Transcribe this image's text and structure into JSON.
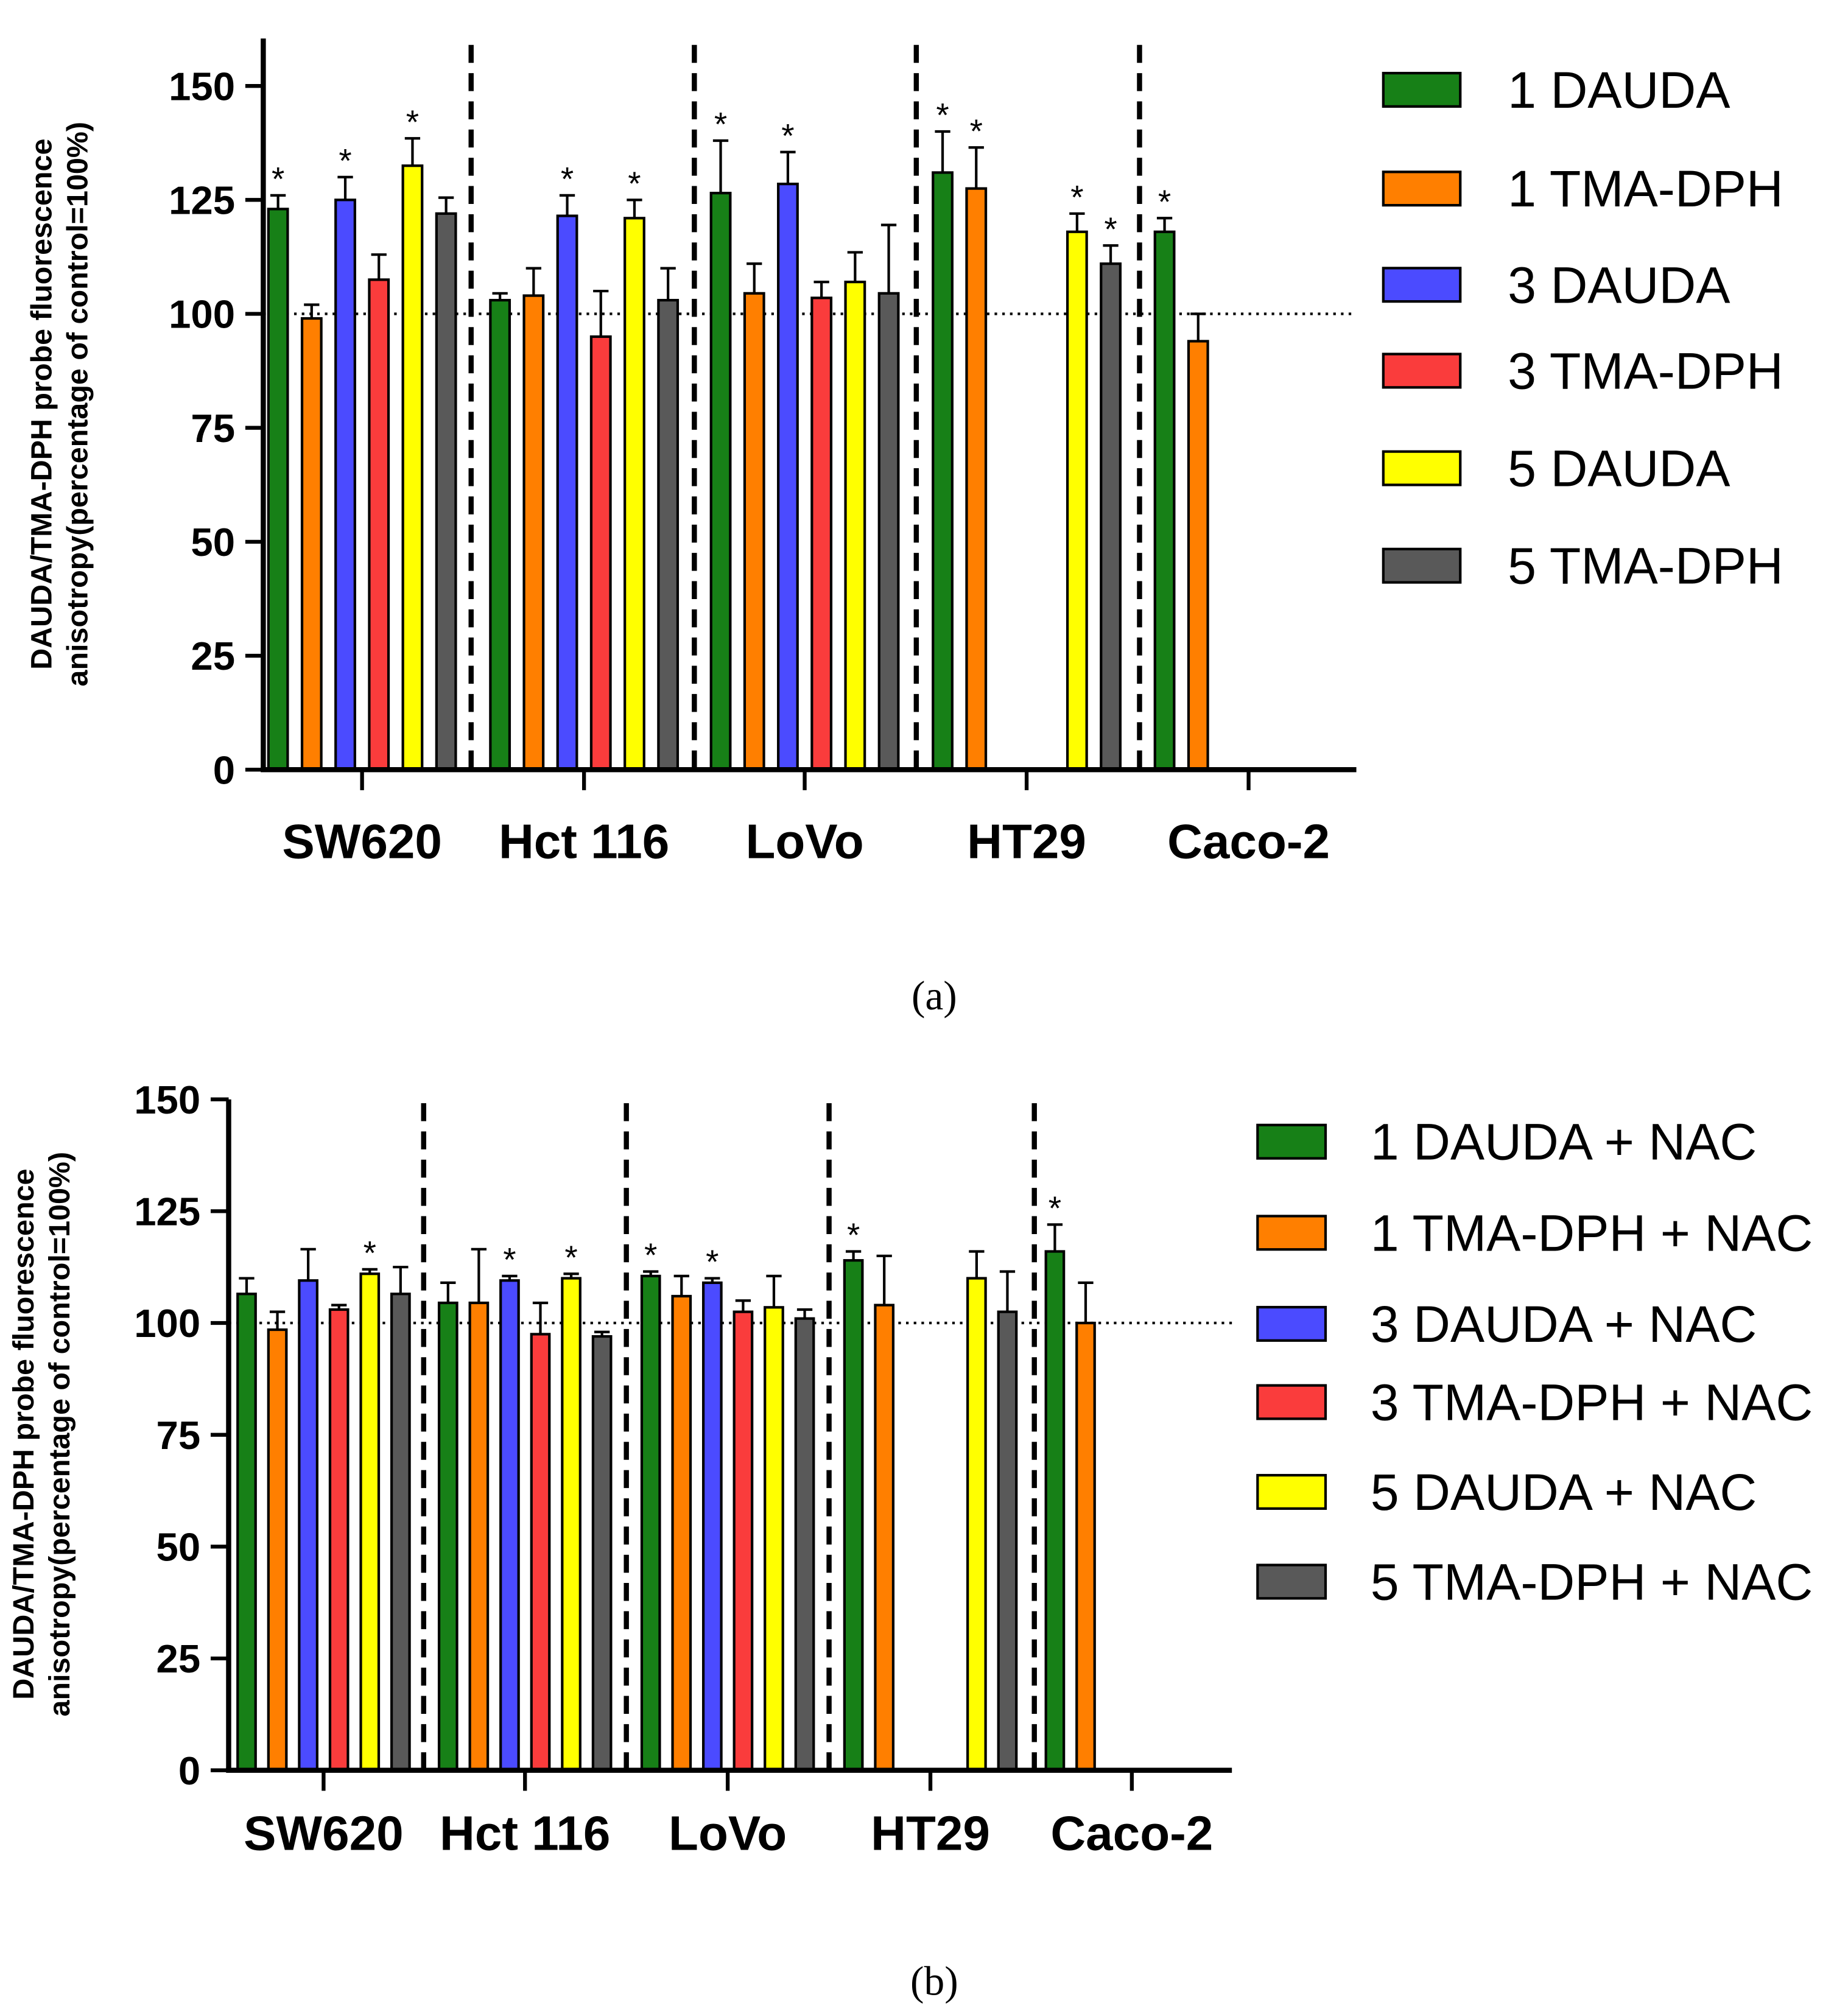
{
  "colors": {
    "1 DAUDA": "#178017",
    "1 TMA-DPH": "#ff7f00",
    "3 DAUDA": "#4b4bff",
    "3 TMA-DPH": "#fa3c3c",
    "5 DAUDA": "#ffff00",
    "5 TMA-DPH": "#595959"
  },
  "chart_data": [
    {
      "type": "bar",
      "caption": "(a)",
      "ylabel_lines": [
        "DAUDA/TMA-DPH probe fluorescence",
        "anisotropy(percentage of control=100%)"
      ],
      "ylim": [
        0,
        160
      ],
      "yticks": [
        0,
        25,
        50,
        75,
        100,
        125,
        150
      ],
      "reference_line": 100,
      "categories": [
        "SW620",
        "Hct 116",
        "LoVo",
        "HT29",
        "Caco-2"
      ],
      "legend_position": "right",
      "series": [
        {
          "name": "1 DAUDA",
          "values": [
            123,
            103,
            126.5,
            131,
            118
          ],
          "errors": [
            3,
            1.5,
            11.5,
            9,
            3
          ],
          "significant": [
            true,
            false,
            true,
            true,
            true
          ]
        },
        {
          "name": "1 TMA-DPH",
          "values": [
            99,
            104,
            104.5,
            127.5,
            94
          ],
          "errors": [
            3,
            6,
            6.5,
            9,
            6
          ],
          "significant": [
            false,
            false,
            false,
            true,
            false
          ]
        },
        {
          "name": "3 DAUDA",
          "values": [
            125,
            121.5,
            128.5,
            null,
            null
          ],
          "errors": [
            5,
            4.5,
            7,
            null,
            null
          ],
          "significant": [
            true,
            true,
            true,
            false,
            false
          ]
        },
        {
          "name": "3 TMA-DPH",
          "values": [
            107.5,
            95,
            103.5,
            null,
            null
          ],
          "errors": [
            5.5,
            10,
            3.5,
            null,
            null
          ],
          "significant": [
            false,
            false,
            false,
            false,
            false
          ]
        },
        {
          "name": "5 DAUDA",
          "values": [
            132.5,
            121,
            107,
            118,
            null
          ],
          "errors": [
            6,
            4,
            6.5,
            4,
            null
          ],
          "significant": [
            true,
            true,
            false,
            true,
            false
          ]
        },
        {
          "name": "5 TMA-DPH",
          "values": [
            122,
            103,
            104.5,
            111,
            null
          ],
          "errors": [
            3.5,
            7,
            15,
            4,
            null
          ],
          "significant": [
            false,
            false,
            false,
            true,
            false
          ]
        }
      ]
    },
    {
      "type": "bar",
      "caption": "(b)",
      "ylabel_lines": [
        "DAUDA/TMA-DPH probe fluorescence",
        "anisotropy(percentage of control=100%)"
      ],
      "ylim": [
        0,
        150
      ],
      "yticks": [
        0,
        25,
        50,
        75,
        100,
        125,
        150
      ],
      "reference_line": 100,
      "categories": [
        "SW620",
        "Hct 116",
        "LoVo",
        "HT29",
        "Caco-2"
      ],
      "legend_position": "right",
      "series": [
        {
          "name": "1 DAUDA + NAC",
          "values": [
            106.5,
            104.5,
            110.5,
            114,
            116
          ],
          "errors": [
            3.5,
            4.5,
            1,
            2,
            6
          ],
          "significant": [
            false,
            false,
            true,
            true,
            true
          ]
        },
        {
          "name": "1 TMA-DPH + NAC",
          "values": [
            98.5,
            104.5,
            106,
            104,
            100
          ],
          "errors": [
            4,
            12,
            4.5,
            11,
            9
          ],
          "significant": [
            false,
            false,
            false,
            false,
            false
          ]
        },
        {
          "name": "3 DAUDA + NAC",
          "values": [
            109.5,
            109.5,
            109,
            null,
            null
          ],
          "errors": [
            7,
            1,
            1,
            null,
            null
          ],
          "significant": [
            false,
            true,
            true,
            false,
            false
          ]
        },
        {
          "name": "3 TMA-DPH + NAC",
          "values": [
            103,
            97.5,
            102.5,
            null,
            null
          ],
          "errors": [
            1,
            7,
            2.5,
            null,
            null
          ],
          "significant": [
            false,
            false,
            false,
            false,
            false
          ]
        },
        {
          "name": "5 DAUDA + NAC",
          "values": [
            111,
            110,
            103.5,
            110,
            null
          ],
          "errors": [
            1,
            1,
            7,
            6,
            null
          ],
          "significant": [
            true,
            true,
            false,
            false,
            false
          ]
        },
        {
          "name": "5 TMA-DPH + NAC",
          "values": [
            106.5,
            97,
            101,
            102.5,
            null
          ],
          "errors": [
            6,
            1,
            2,
            9,
            null
          ],
          "significant": [
            false,
            false,
            false,
            false,
            false
          ]
        }
      ]
    }
  ],
  "star_symbol": "*"
}
